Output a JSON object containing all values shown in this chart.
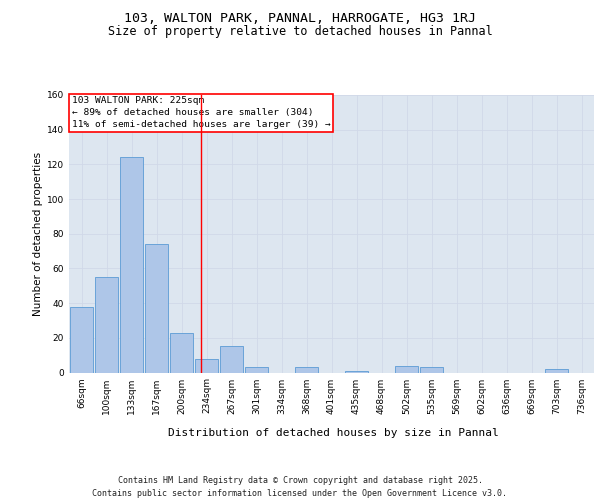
{
  "title1": "103, WALTON PARK, PANNAL, HARROGATE, HG3 1RJ",
  "title2": "Size of property relative to detached houses in Pannal",
  "xlabel": "Distribution of detached houses by size in Pannal",
  "ylabel": "Number of detached properties",
  "categories": [
    "66sqm",
    "100sqm",
    "133sqm",
    "167sqm",
    "200sqm",
    "234sqm",
    "267sqm",
    "301sqm",
    "334sqm",
    "368sqm",
    "401sqm",
    "435sqm",
    "468sqm",
    "502sqm",
    "535sqm",
    "569sqm",
    "602sqm",
    "636sqm",
    "669sqm",
    "703sqm",
    "736sqm"
  ],
  "values": [
    38,
    55,
    124,
    74,
    23,
    8,
    15,
    3,
    0,
    3,
    0,
    1,
    0,
    4,
    3,
    0,
    0,
    0,
    0,
    2,
    0
  ],
  "bar_color": "#aec6e8",
  "bar_edge_color": "#5b9bd5",
  "grid_color": "#d0d8e8",
  "background_color": "#dde6f0",
  "annotation_box_text": "103 WALTON PARK: 225sqm\n← 89% of detached houses are smaller (304)\n11% of semi-detached houses are larger (39) →",
  "annotation_box_color": "red",
  "vline_x_index": 4.76,
  "vline_color": "red",
  "footnote": "Contains HM Land Registry data © Crown copyright and database right 2025.\nContains public sector information licensed under the Open Government Licence v3.0.",
  "ylim": [
    0,
    160
  ],
  "title1_fontsize": 9.5,
  "title2_fontsize": 8.5,
  "xlabel_fontsize": 8,
  "ylabel_fontsize": 7.5,
  "tick_fontsize": 6.5,
  "annotation_fontsize": 6.8,
  "footnote_fontsize": 6.0
}
